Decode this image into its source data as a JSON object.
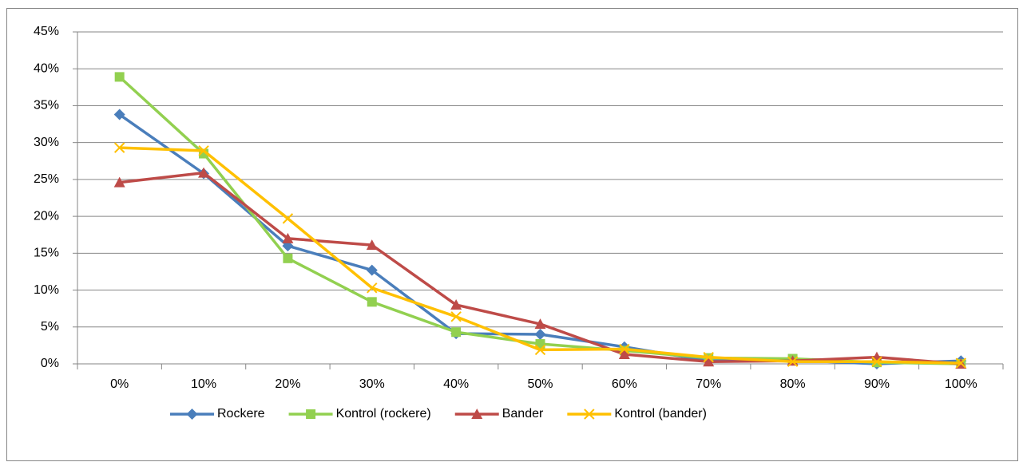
{
  "chart_data": {
    "type": "line",
    "categories": [
      "0%",
      "10%",
      "20%",
      "30%",
      "40%",
      "50%",
      "60%",
      "70%",
      "80%",
      "90%",
      "100%"
    ],
    "series": [
      {
        "name": "Rockere",
        "color": "#4a7ebb",
        "marker": "diamond",
        "values": [
          33.8,
          25.8,
          16.0,
          12.7,
          4.1,
          4.0,
          2.3,
          0.4,
          0.5,
          0.0,
          0.4
        ]
      },
      {
        "name": "Kontrol (rockere)",
        "color": "#92d050",
        "marker": "square",
        "values": [
          38.9,
          28.5,
          14.3,
          8.4,
          4.3,
          2.7,
          1.8,
          0.8,
          0.7,
          0.2,
          0.0
        ]
      },
      {
        "name": "Bander",
        "color": "#be4b48",
        "marker": "triangle",
        "values": [
          24.6,
          25.9,
          17.0,
          16.1,
          8.0,
          5.4,
          1.3,
          0.3,
          0.4,
          0.9,
          0.0
        ]
      },
      {
        "name": "Kontrol (bander)",
        "color": "#ffc000",
        "marker": "x",
        "values": [
          29.3,
          28.9,
          19.7,
          10.3,
          6.4,
          1.9,
          2.0,
          0.9,
          0.3,
          0.3,
          0.1
        ]
      }
    ],
    "ylim": [
      0,
      45
    ],
    "yticks": [
      {
        "value": 0,
        "label": "0%"
      },
      {
        "value": 5,
        "label": "5%"
      },
      {
        "value": 10,
        "label": "10%"
      },
      {
        "value": 15,
        "label": "15%"
      },
      {
        "value": 20,
        "label": "20%"
      },
      {
        "value": 25,
        "label": "25%"
      },
      {
        "value": 30,
        "label": "30%"
      },
      {
        "value": 35,
        "label": "35%"
      },
      {
        "value": 40,
        "label": "40%"
      },
      {
        "value": 45,
        "label": "45%"
      }
    ],
    "grid": true,
    "legend": "bottom"
  }
}
